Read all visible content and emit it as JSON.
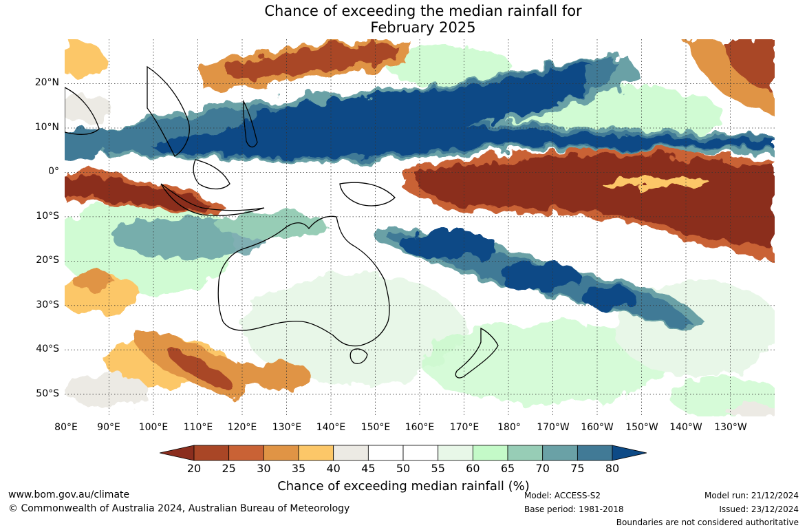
{
  "title": {
    "line1": "Chance of exceeding the median rainfall for",
    "line2": "February 2025"
  },
  "map": {
    "lat_labels": [
      "20°N",
      "10°N",
      "0°",
      "10°S",
      "20°S",
      "30°S",
      "40°S",
      "50°S"
    ],
    "lon_labels": [
      "80°E",
      "90°E",
      "100°E",
      "110°E",
      "120°E",
      "130°E",
      "140°E",
      "150°E",
      "160°E",
      "170°E",
      "180°",
      "170°W",
      "160°W",
      "150°W",
      "140°W",
      "130°W"
    ],
    "lat_range": [
      30,
      -55
    ],
    "lon_range": [
      80,
      240
    ]
  },
  "colorbar": {
    "ticks": [
      "20",
      "25",
      "30",
      "35",
      "40",
      "45",
      "50",
      "55",
      "60",
      "65",
      "70",
      "75",
      "80"
    ],
    "label": "Chance of exceeding median rainfall (%)",
    "under_color": "#8b2e1e",
    "over_color": "#0d4a86",
    "colors": [
      "#a94626",
      "#c96235",
      "#e09445",
      "#fcc768",
      "#eceae4",
      "#ffffff",
      "#ffffff",
      "#e8f7e8",
      "#c4fac8",
      "#97cdb6",
      "#6aa1a6",
      "#417a96"
    ]
  },
  "footer": {
    "website": "www.bom.gov.au/climate",
    "copyright": "© Commonwealth of Australia 2024, Australian Bureau of Meteorology",
    "model": "Model: ACCESS-S2",
    "base_period": "Base period: 1981-2018",
    "model_run": "Model run: 21/12/2024",
    "issued": "Issued: 23/12/2024",
    "disclaimer": "Boundaries are not considered authoritative"
  }
}
